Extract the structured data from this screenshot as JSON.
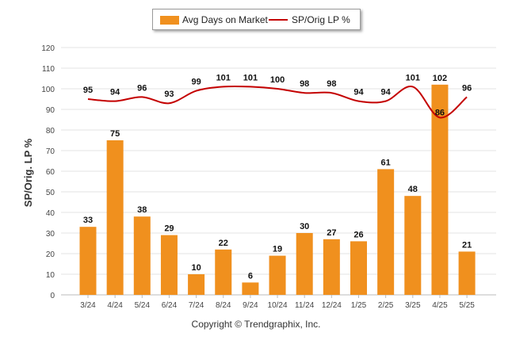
{
  "chart_data": {
    "type": "bar+line",
    "categories": [
      "3/24",
      "4/24",
      "5/24",
      "6/24",
      "7/24",
      "8/24",
      "9/24",
      "10/24",
      "11/24",
      "12/24",
      "1/25",
      "2/25",
      "3/25",
      "4/25",
      "5/25"
    ],
    "series": [
      {
        "name": "Avg Days on Market",
        "type": "bar",
        "color": "#f0901e",
        "values": [
          33,
          75,
          38,
          29,
          10,
          22,
          6,
          19,
          30,
          27,
          26,
          61,
          48,
          102,
          21
        ]
      },
      {
        "name": "SP/Orig LP %",
        "type": "line",
        "color": "#c40000",
        "values": [
          95,
          94,
          96,
          93,
          99,
          101,
          101,
          100,
          98,
          98,
          94,
          94,
          101,
          86,
          96
        ]
      }
    ],
    "ylabel": "SP/Orig. LP %",
    "ylim": [
      0,
      120
    ],
    "yticks": [
      0,
      10,
      20,
      30,
      40,
      50,
      60,
      70,
      80,
      90,
      100,
      110,
      120
    ],
    "grid": true,
    "legend_position": "top"
  },
  "legend": {
    "bar_label": "Avg Days on Market",
    "line_label": "SP/Orig LP %"
  },
  "footer": {
    "copyright": "Copyright © Trendgraphix, Inc."
  }
}
